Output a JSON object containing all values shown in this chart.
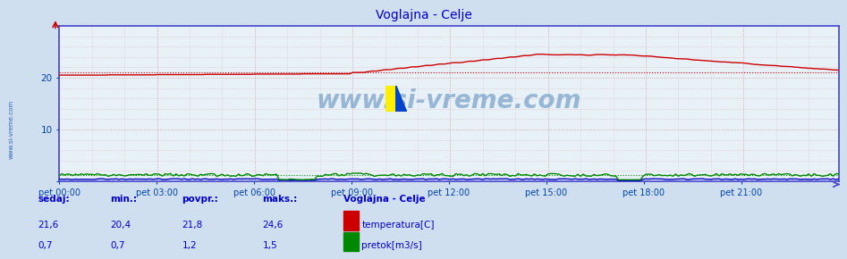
{
  "title": "Voglajna - Celje",
  "title_color": "#0000cc",
  "bg_color": "#d0dff0",
  "plot_bg_color": "#e8f0f8",
  "x_labels": [
    "pet 00:00",
    "pet 03:00",
    "pet 06:00",
    "pet 09:00",
    "pet 12:00",
    "pet 15:00",
    "pet 18:00",
    "pet 21:00"
  ],
  "n_points": 288,
  "y_min": 0,
  "y_max": 30,
  "temp_color": "#cc0000",
  "pretok_color": "#008800",
  "visina_color": "#0000bb",
  "grid_color": "#ccaaaa",
  "dot_grid_color": "#ddbbbb",
  "watermark": "www.si-vreme.com",
  "legend_title": "Voglajna - Celje",
  "sedaj_label": "sedaj:",
  "min_label": "min.:",
  "povpr_label": "povpr.:",
  "maks_label": "maks.:",
  "temp_sedaj": "21,6",
  "temp_min": "20,4",
  "temp_povpr": "21,8",
  "temp_maks": "24,6",
  "pretok_sedaj": "0,7",
  "pretok_min": "0,7",
  "pretok_povpr": "1,2",
  "pretok_maks": "1,5",
  "temp_label": "temperatura[C]",
  "pretok_label": "pretok[m3/s]",
  "axis_color": "#0044aa",
  "font_color": "#0000cc",
  "spine_color": "#4444cc"
}
